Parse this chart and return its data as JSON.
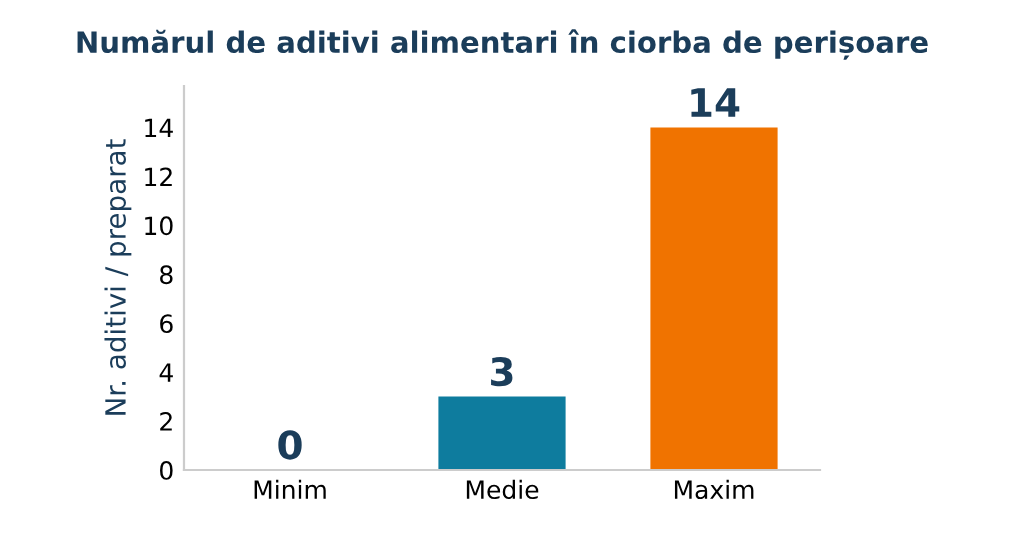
{
  "chart_data": {
    "type": "bar",
    "title": "Numărul de aditivi alimentari în ciorba de perișoare",
    "ylabel": "Nr. aditivi / preparat",
    "categories": [
      "Minim",
      "Medie",
      "Maxim"
    ],
    "values": [
      0,
      3,
      14
    ],
    "colors": [
      "#9e9e9e",
      "#0e7c9e",
      "#f07300"
    ],
    "ylim": [
      0,
      15.7
    ],
    "yticks": [
      0,
      2,
      4,
      6,
      8,
      10,
      12,
      14
    ],
    "grid": false,
    "data_labels": true
  }
}
